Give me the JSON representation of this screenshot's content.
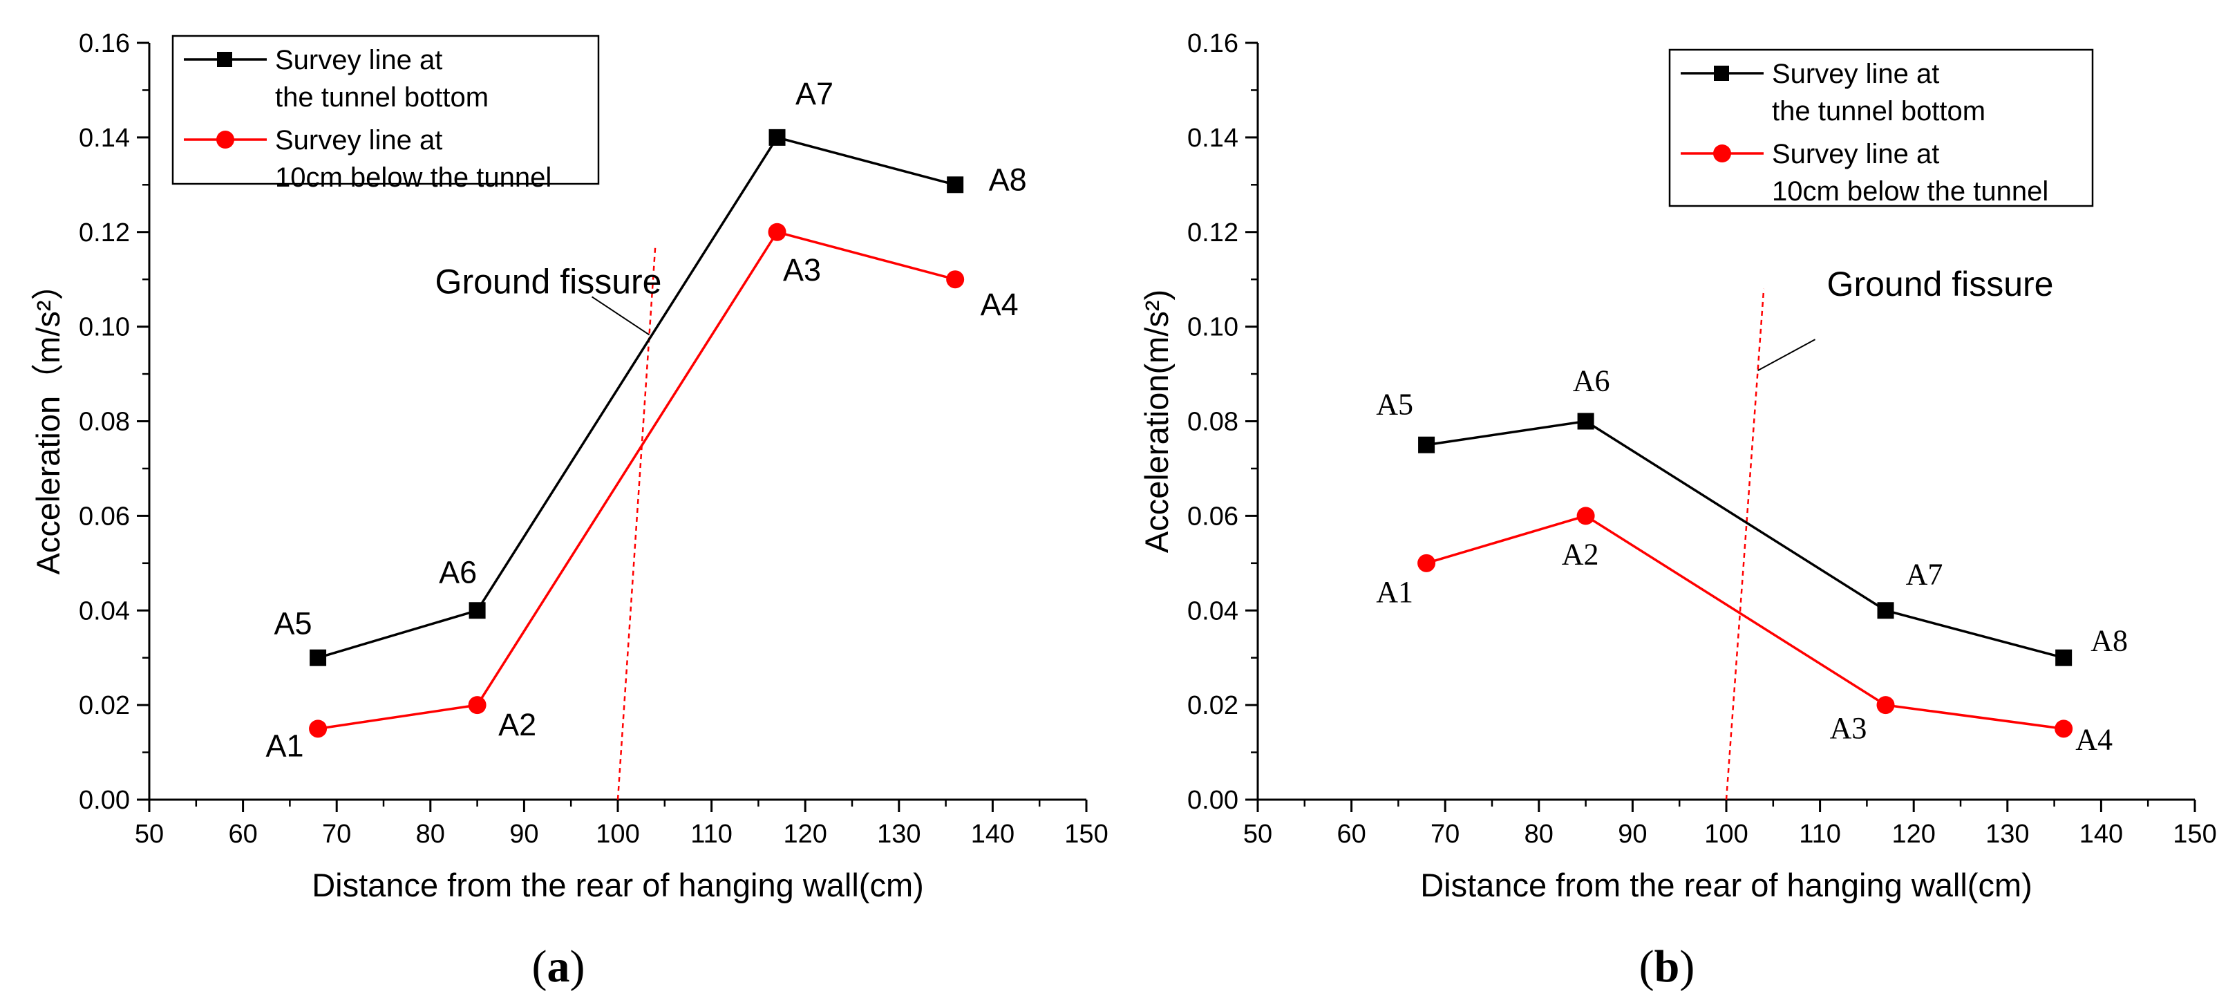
{
  "figure": {
    "subcaptions": [
      "(a)",
      "(b)"
    ]
  },
  "chart_data": [
    {
      "type": "line",
      "panel": "(a)",
      "xlabel": "Distance from the rear of hanging wall(cm)",
      "ylabel": "Acceleration（m/s²）",
      "xlim": [
        50,
        150
      ],
      "ylim": [
        0,
        0.16
      ],
      "xticks": [
        "50",
        "60",
        "70",
        "80",
        "90",
        "100",
        "110",
        "120",
        "130",
        "140",
        "150"
      ],
      "yticks": [
        "0.00",
        "0.02",
        "0.04",
        "0.06",
        "0.08",
        "0.10",
        "0.12",
        "0.14",
        "0.16"
      ],
      "legend_position": "top-left",
      "series": [
        {
          "name": "Survey line at the tunnel bottom",
          "legend_lines": [
            "Survey line at",
            "the tunnel bottom"
          ],
          "color": "#000000",
          "marker": "square",
          "x": [
            68,
            85,
            117,
            136
          ],
          "y": [
            0.03,
            0.04,
            0.14,
            0.13
          ],
          "labels": [
            "A5",
            "A6",
            "A7",
            "A8"
          ]
        },
        {
          "name": "Survey line at 10cm below the tunnel",
          "legend_lines": [
            "Survey line at",
            "10cm below the tunnel"
          ],
          "color": "#ff0000",
          "marker": "circle",
          "x": [
            68,
            85,
            117,
            136
          ],
          "y": [
            0.015,
            0.02,
            0.12,
            0.11
          ],
          "labels": [
            "A1",
            "A2",
            "A3",
            "A4"
          ]
        }
      ],
      "fissure": {
        "label": "Ground fissure",
        "x0": 100,
        "y0": 0,
        "x1": 104,
        "y1": 0.117,
        "color": "#ff0000"
      }
    },
    {
      "type": "line",
      "panel": "(b)",
      "xlabel": "Distance from the rear of hanging wall(cm)",
      "ylabel": "Acceleration(m/s²)",
      "xlim": [
        50,
        150
      ],
      "ylim": [
        0,
        0.16
      ],
      "xticks": [
        "50",
        "60",
        "70",
        "80",
        "90",
        "100",
        "110",
        "120",
        "130",
        "140",
        "150"
      ],
      "yticks": [
        "0.00",
        "0.02",
        "0.04",
        "0.06",
        "0.08",
        "0.10",
        "0.12",
        "0.14",
        "0.16"
      ],
      "legend_position": "top-right",
      "series": [
        {
          "name": "Survey line at the tunnel bottom",
          "legend_lines": [
            "Survey line at",
            "the tunnel bottom"
          ],
          "color": "#000000",
          "marker": "square",
          "x": [
            68,
            85,
            117,
            136
          ],
          "y": [
            0.075,
            0.08,
            0.04,
            0.03
          ],
          "labels": [
            "A5",
            "A6",
            "A7",
            "A8"
          ]
        },
        {
          "name": "Survey line at 10cm below the tunnel",
          "legend_lines": [
            "Survey line at",
            "10cm below the tunnel"
          ],
          "color": "#ff0000",
          "marker": "circle",
          "x": [
            68,
            85,
            117,
            136
          ],
          "y": [
            0.05,
            0.06,
            0.02,
            0.015
          ],
          "labels": [
            "A1",
            "A2",
            "A3",
            "A4"
          ]
        }
      ],
      "fissure": {
        "label": "Ground fissure",
        "x0": 100,
        "y0": 0,
        "x1": 104,
        "y1": 0.108,
        "color": "#ff0000"
      }
    }
  ]
}
